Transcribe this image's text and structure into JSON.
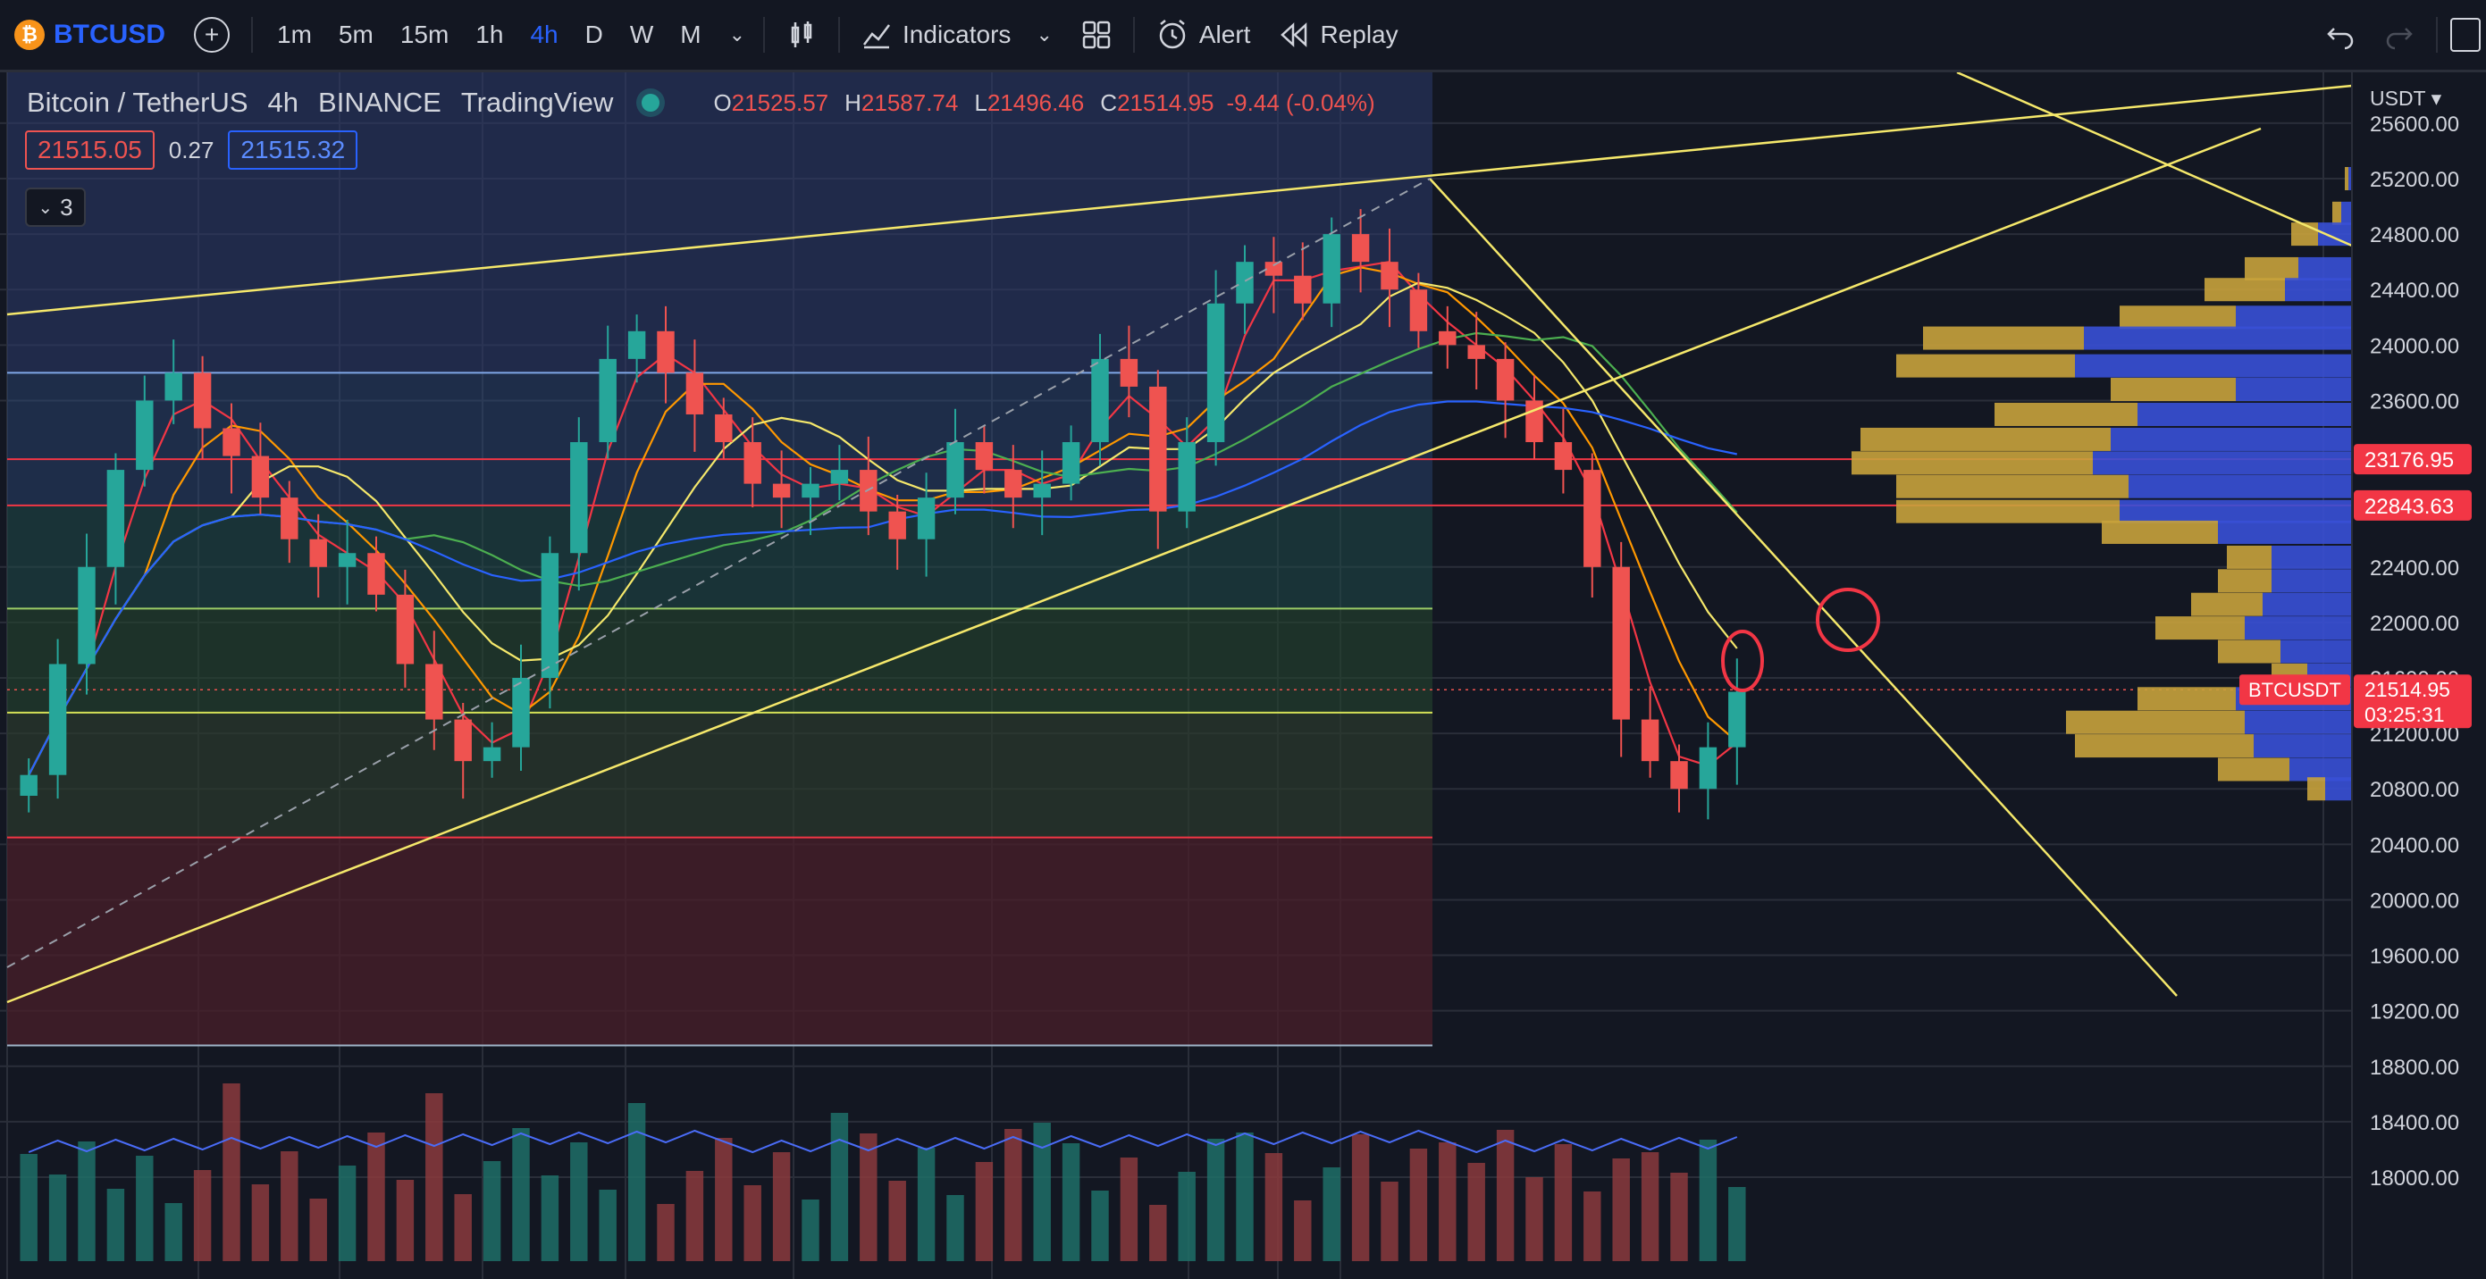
{
  "toolbar": {
    "symbol": "BTCUSD",
    "coin_glyph": "₿",
    "add_glyph": "+",
    "intervals": [
      "1m",
      "5m",
      "15m",
      "1h",
      "4h",
      "D",
      "W",
      "M"
    ],
    "active_interval": "4h",
    "indicators_label": "Indicators",
    "alert_label": "Alert",
    "replay_label": "Replay",
    "icons": [
      "add-symbol-icon",
      "candles-icon",
      "indicators-icon",
      "layout-icon",
      "alert-clock-icon",
      "replay-icon",
      "undo-icon",
      "redo-icon"
    ]
  },
  "legend": {
    "pair": "Bitcoin / TetherUS",
    "interval": "4h",
    "exchange": "BINANCE",
    "source": "TradingView",
    "o_label": "O",
    "o": "21525.57",
    "h_label": "H",
    "h": "21587.74",
    "l_label": "L",
    "l": "21496.46",
    "c_label": "C",
    "c": "21514.95",
    "change": "-9.44 (-0.04%)",
    "bid": "21515.05",
    "spread": "0.27",
    "ask": "21515.32",
    "collapsed_count": "3"
  },
  "price_axis": {
    "currency": "USDT",
    "labels": [
      "25600.00",
      "25200.00",
      "24800.00",
      "24400.00",
      "24000.00",
      "23600.00",
      "22400.00",
      "22000.00",
      "21600.00",
      "21200.00",
      "20800.00",
      "20400.00",
      "20000.00",
      "19600.00",
      "19200.00",
      "18800.00",
      "18400.00",
      "18000.00"
    ],
    "badges": [
      {
        "text": "23176.95",
        "color": "#f23645"
      },
      {
        "text": "22843.63",
        "color": "#f23645"
      }
    ],
    "current": {
      "symbol": "BTCUSDT",
      "price": "21514.95",
      "countdown": "03:25:31"
    }
  },
  "colors": {
    "background": "#131722",
    "up": "#26a69a",
    "down": "#ef5350",
    "trendline": "#f5e86b",
    "ma_blue": "#2962ff",
    "ma_green": "#4caf50",
    "volume_profile_gold": "#c8a23c",
    "volume_profile_blue": "#3950d6"
  },
  "chart_data": {
    "type": "candlestick",
    "symbol": "BTCUSDT",
    "interval": "4h",
    "ylim": [
      17900,
      25700
    ],
    "closes": [
      20900,
      21700,
      22400,
      23100,
      23600,
      23800,
      23400,
      23200,
      22900,
      22600,
      22400,
      22500,
      22200,
      21700,
      21300,
      21000,
      21100,
      21600,
      22500,
      23300,
      23900,
      24100,
      23800,
      23500,
      23300,
      23000,
      22900,
      23000,
      23100,
      22800,
      22600,
      22900,
      23300,
      23100,
      22900,
      23000,
      23300,
      23900,
      23700,
      22800,
      23300,
      24300,
      24600,
      24500,
      24300,
      24800,
      24600,
      24400,
      24100,
      24000,
      23900,
      23600,
      23300,
      23100,
      22400,
      21300,
      21000,
      20800,
      21100,
      21500
    ],
    "last_price": 21514.95,
    "horizontal_levels": [
      23800,
      23176.95,
      22843.63,
      22100,
      21350,
      20450,
      18950
    ],
    "moving_averages": [
      "ma-fast",
      "ma-mid",
      "ma-slow",
      "ma-long"
    ]
  },
  "volume_profile": {
    "rows": [
      {
        "price": 25200,
        "gold": 4,
        "blue": 4
      },
      {
        "price": 24950,
        "gold": 10,
        "blue": 12
      },
      {
        "price": 24800,
        "gold": 30,
        "blue": 38
      },
      {
        "price": 24550,
        "gold": 60,
        "blue": 60
      },
      {
        "price": 24400,
        "gold": 90,
        "blue": 75
      },
      {
        "price": 24200,
        "gold": 130,
        "blue": 130
      },
      {
        "price": 24050,
        "gold": 180,
        "blue": 300
      },
      {
        "price": 23850,
        "gold": 200,
        "blue": 310
      },
      {
        "price": 23680,
        "gold": 140,
        "blue": 130
      },
      {
        "price": 23500,
        "gold": 160,
        "blue": 240
      },
      {
        "price": 23320,
        "gold": 280,
        "blue": 270
      },
      {
        "price": 23150,
        "gold": 270,
        "blue": 290
      },
      {
        "price": 22980,
        "gold": 260,
        "blue": 250
      },
      {
        "price": 22800,
        "gold": 250,
        "blue": 260
      },
      {
        "price": 22650,
        "gold": 130,
        "blue": 150
      },
      {
        "price": 22470,
        "gold": 50,
        "blue": 90
      },
      {
        "price": 22300,
        "gold": 60,
        "blue": 90
      },
      {
        "price": 22130,
        "gold": 80,
        "blue": 100
      },
      {
        "price": 21960,
        "gold": 100,
        "blue": 120
      },
      {
        "price": 21790,
        "gold": 70,
        "blue": 80
      },
      {
        "price": 21620,
        "gold": 40,
        "blue": 50
      },
      {
        "price": 21450,
        "gold": 110,
        "blue": 130
      },
      {
        "price": 21280,
        "gold": 200,
        "blue": 120
      },
      {
        "price": 21110,
        "gold": 200,
        "blue": 110
      },
      {
        "price": 20940,
        "gold": 80,
        "blue": 70
      },
      {
        "price": 20800,
        "gold": 20,
        "blue": 30
      }
    ]
  }
}
